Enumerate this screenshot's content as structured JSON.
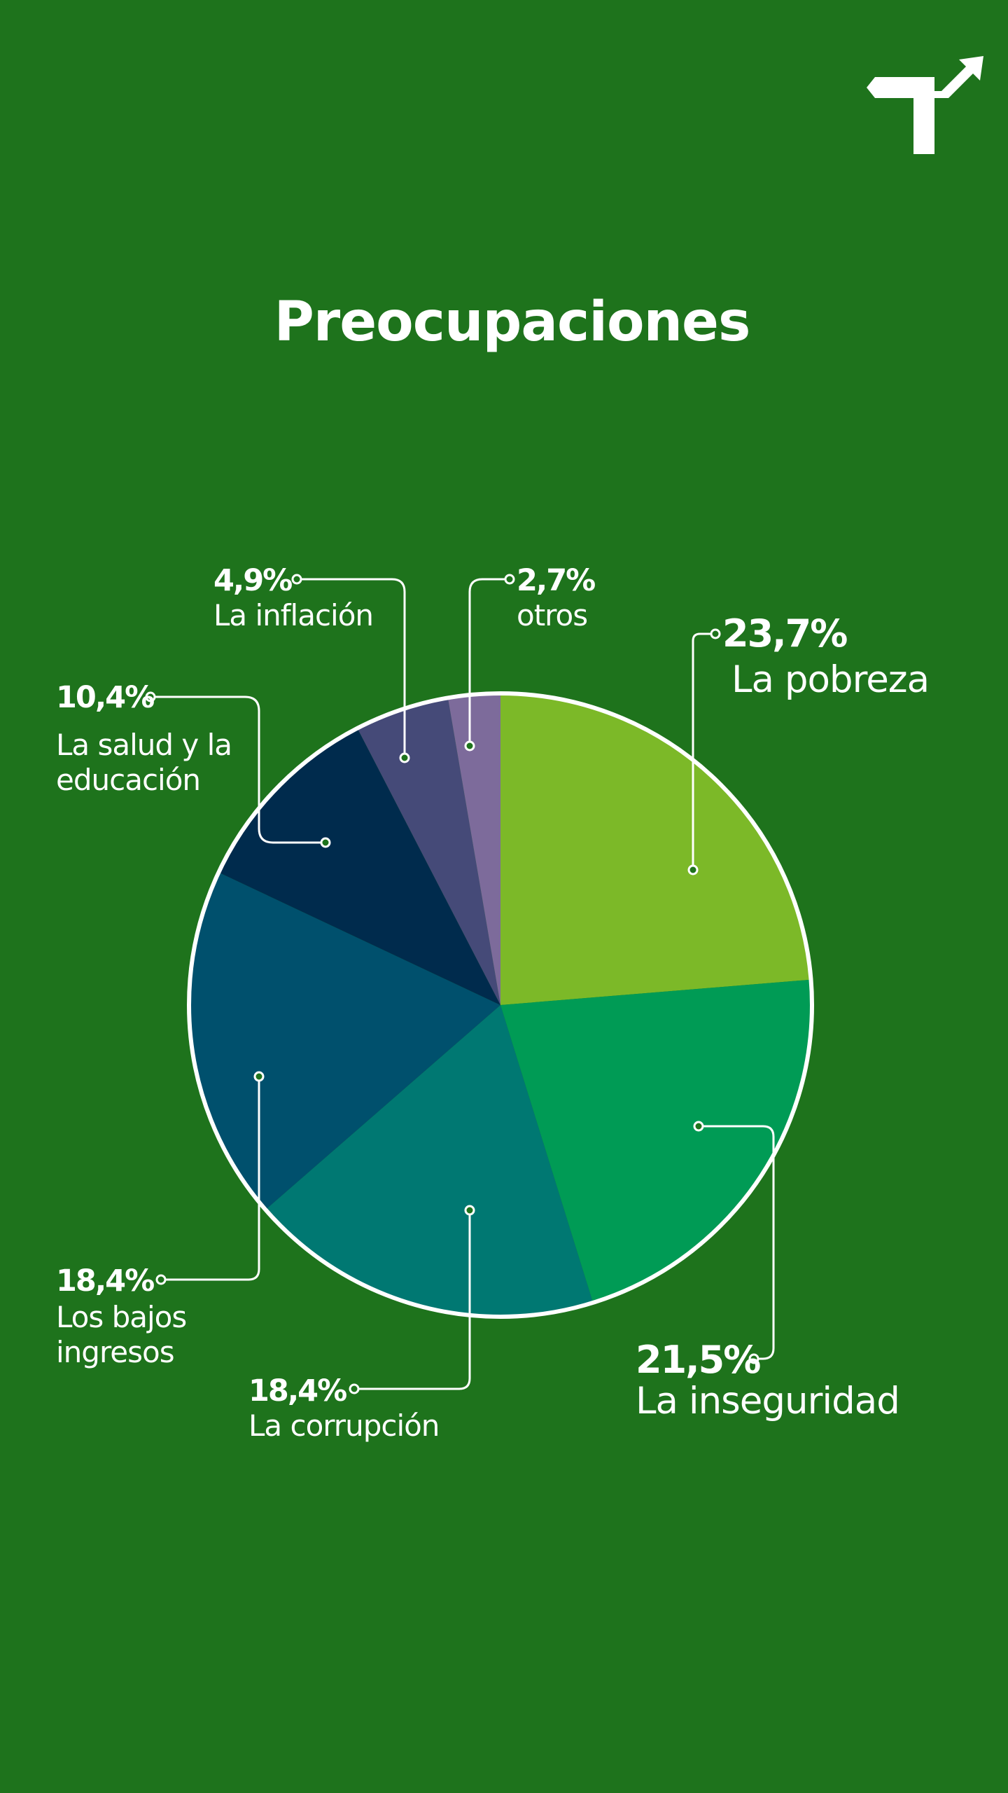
{
  "title": "Preocupaciones",
  "logo_icon": "turn-arrow-logo-icon",
  "colors": {
    "background": "#1e731c",
    "text": "#ffffff"
  },
  "chart_data": {
    "type": "pie",
    "unit": "%",
    "legend": "none",
    "slices": [
      {
        "label": "La pobreza",
        "value": 23.7,
        "value_label": "23,7%",
        "color": "#7cb928"
      },
      {
        "label": "La inseguridad",
        "value": 21.5,
        "value_label": "21,5%",
        "color": "#009b55"
      },
      {
        "label": "La corrupción",
        "value": 18.4,
        "value_label": "18,4%",
        "color": "#007872"
      },
      {
        "label": "Los bajos ingresos",
        "value": 18.4,
        "value_label": "18,4%",
        "color": "#00506d"
      },
      {
        "label": "La salud y la educación",
        "value": 10.4,
        "value_label": "10,4%",
        "color": "#002b4d"
      },
      {
        "label": "La inflación",
        "value": 4.9,
        "value_label": "4,9%",
        "color": "#454a78"
      },
      {
        "label": "otros",
        "value": 2.7,
        "value_label": "2,7%",
        "color": "#7d6b9b"
      }
    ]
  }
}
